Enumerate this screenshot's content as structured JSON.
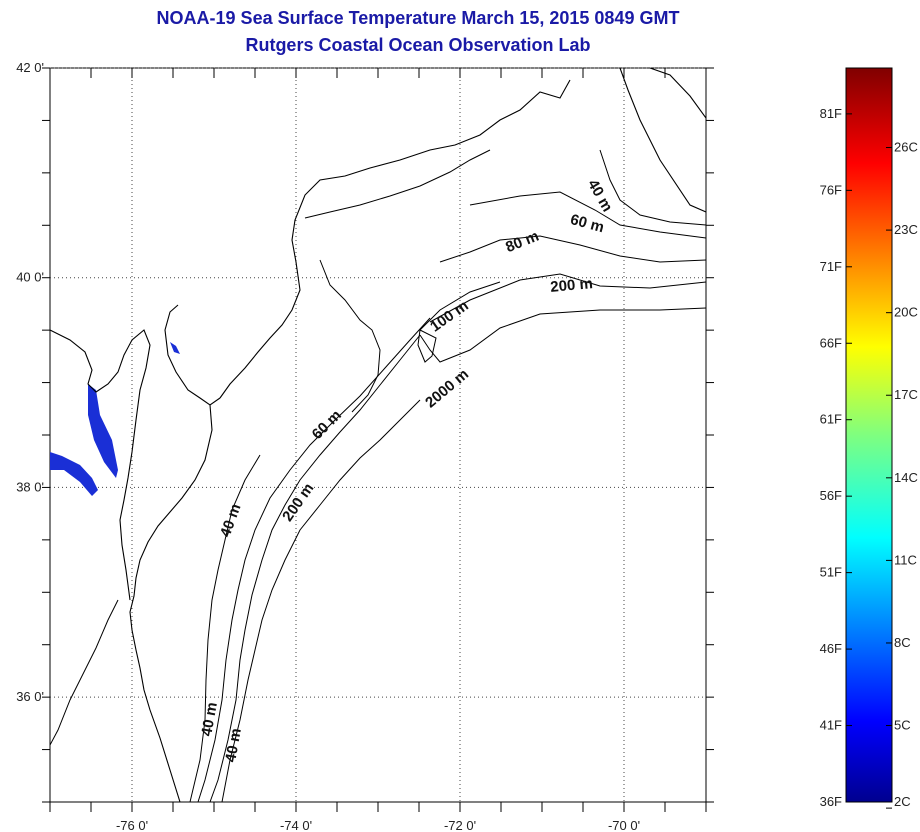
{
  "title": "NOAA-19 Sea Surface Temperature March 15, 2015 0849 GMT",
  "subtitle": "Rutgers Coastal Ocean Observation Lab",
  "map": {
    "lat_ticks": [
      {
        "value": 42,
        "label": "42 0'"
      },
      {
        "value": 40,
        "label": "40 0'"
      },
      {
        "value": 38,
        "label": "38 0'"
      },
      {
        "value": 36,
        "label": "36 0'"
      }
    ],
    "lon_ticks": [
      {
        "value": -76,
        "label": "-76 0'"
      },
      {
        "value": -74,
        "label": "-74 0'"
      },
      {
        "value": -72,
        "label": "-72 0'"
      },
      {
        "value": -70,
        "label": "-70 0'"
      }
    ],
    "extent": {
      "lon_min": -77,
      "lon_max": -69,
      "lat_min": 35,
      "lat_max": 42
    },
    "graticule": "dotted",
    "isobath_labels": [
      "40 m",
      "60 m",
      "80 m",
      "200 m",
      "100 m",
      "2000 m",
      "60 m",
      "40 m",
      "200 m",
      "40 m",
      "40 m"
    ],
    "colors": {
      "land_outline": "#000000",
      "water_fill": "#1a2fd6",
      "background": "#ffffff"
    }
  },
  "colorbar": {
    "fahrenheit_labels": [
      "81F",
      "76F",
      "71F",
      "66F",
      "61F",
      "56F",
      "51F",
      "46F",
      "41F",
      "36F"
    ],
    "celsius_labels": [
      "26C",
      "23C",
      "20C",
      "17C",
      "14C",
      "11C",
      "8C",
      "5C",
      "2C"
    ],
    "fahrenheit_range": [
      36,
      84
    ],
    "colormap": "jet"
  }
}
